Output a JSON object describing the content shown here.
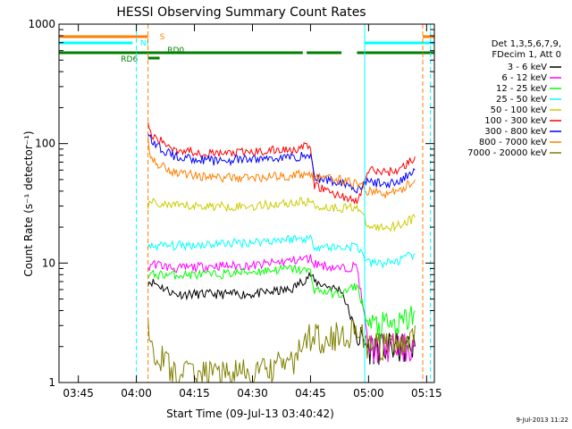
{
  "chart_data": {
    "type": "line",
    "title": "HESSI Observing Summary Count Rates",
    "xlabel": "Start Time (09-Jul-13 03:40:42)",
    "ylabel": "Count Rate (s⁻¹ detector⁻¹)",
    "y_scale": "log",
    "ylim": [
      1,
      1000
    ],
    "xlim": [
      "03:40",
      "05:17"
    ],
    "x_ticks": [
      "03:45",
      "04:00",
      "04:15",
      "04:30",
      "04:45",
      "05:00",
      "05:15"
    ],
    "y_ticks": [
      "1",
      "10",
      "100",
      "1000"
    ],
    "legend_header": [
      "Det 1,3,5,6,7,9,",
      "FDecim 1, Att 0"
    ],
    "legend_position": "right",
    "x": [
      "04:03",
      "04:04",
      "04:10",
      "04:20",
      "04:30",
      "04:40",
      "04:45",
      "04:46",
      "04:52",
      "04:53",
      "04:57",
      "05:00",
      "05:04",
      "05:08",
      "05:12"
    ],
    "series": [
      {
        "name": "3 - 6 keV",
        "color": "#000000",
        "values": [
          7,
          7,
          5.5,
          5.5,
          5.5,
          6,
          8,
          7,
          6,
          6,
          2.5,
          2,
          2,
          2,
          2
        ]
      },
      {
        "name": "6 - 12 keV",
        "color": "#ff00ff",
        "values": [
          9,
          10,
          9,
          9.5,
          9.5,
          10.5,
          11,
          10,
          9,
          9,
          9.5,
          2,
          2,
          2,
          2
        ]
      },
      {
        "name": "12 - 25 keV",
        "color": "#00ff00",
        "values": [
          7.5,
          8,
          8,
          8,
          8.5,
          9,
          8.5,
          6,
          5.5,
          5.5,
          6.5,
          3,
          3,
          3,
          4
        ]
      },
      {
        "name": "25 - 50 keV",
        "color": "#00ffff",
        "values": [
          13,
          14,
          14,
          14.5,
          15,
          16,
          16,
          14,
          13.5,
          13.5,
          14,
          10,
          10,
          10.5,
          12
        ]
      },
      {
        "name": "50 - 100 keV",
        "color": "#cccc00",
        "values": [
          30,
          32,
          30,
          30,
          30,
          32,
          33,
          30,
          29,
          29,
          30,
          20,
          20,
          21,
          24
        ]
      },
      {
        "name": "100 - 300 keV",
        "color": "#ff0000",
        "values": [
          150,
          115,
          90,
          82,
          85,
          90,
          95,
          45,
          37,
          37,
          32,
          60,
          58,
          60,
          78
        ]
      },
      {
        "name": "300 - 800 keV",
        "color": "#0000ff",
        "values": [
          130,
          100,
          78,
          72,
          74,
          77,
          80,
          52,
          48,
          48,
          42,
          48,
          46,
          48,
          60
        ]
      },
      {
        "name": "800 - 7000 keV",
        "color": "#ff7f00",
        "values": [
          110,
          72,
          58,
          52,
          52,
          54,
          56,
          52,
          50,
          50,
          46,
          40,
          38,
          40,
          50
        ]
      },
      {
        "name": "7000 - 20000 keV",
        "color": "#808000",
        "values": [
          3.5,
          2,
          1.2,
          1.2,
          1.2,
          1.5,
          2.5,
          2.5,
          2.5,
          2.5,
          3,
          2,
          2,
          2,
          3
        ]
      }
    ],
    "flags": [
      {
        "label": "S",
        "color": "#ff7f00"
      },
      {
        "label": "NI",
        "color": "#00ffff"
      },
      {
        "label": "RD0",
        "color": "#007f00"
      },
      {
        "label": "RD6",
        "color": "#007f00"
      }
    ]
  },
  "timestamp": "9-Jul-2013 11:22"
}
